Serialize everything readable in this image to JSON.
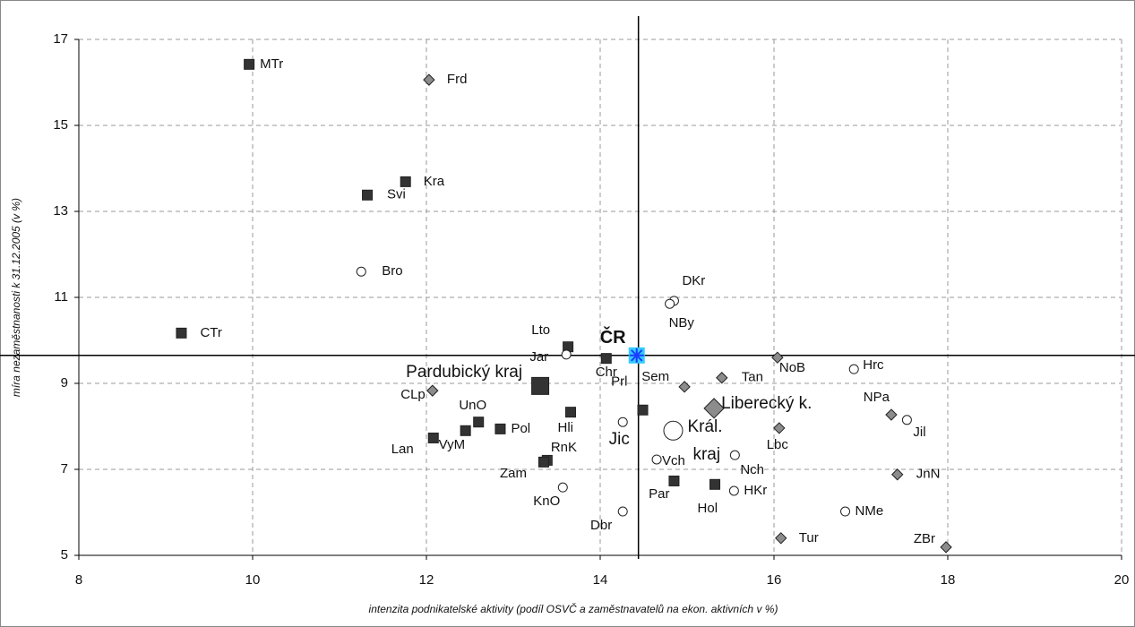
{
  "chart_data": {
    "type": "scatter",
    "xlabel": "intenzita podnikatelské aktivity (podíl OSVČ a zaměstnavatelů na ekon. aktivních v %)",
    "ylabel": "míra nezaměstnanosti  k 31.12.2005 (v %)",
    "xlim": [
      8,
      20
    ],
    "xticks": [
      8,
      10,
      12,
      14,
      16,
      18,
      20
    ],
    "ylim": [
      5,
      17
    ],
    "yticks": [
      5,
      7,
      9,
      11,
      13,
      15,
      17
    ],
    "grid": true,
    "reference_lines": {
      "x": 14.44,
      "y": 9.65
    },
    "series": [
      {
        "marker": "square",
        "color": "#333333",
        "labels": [
          "MTr",
          "Kra",
          "Svi",
          "CTr",
          "Lto",
          "Chr",
          "Hli",
          "UnO",
          "Pol",
          "VyM",
          "Lan",
          "RnK",
          "Zam",
          "Prl",
          "Par",
          "Hol"
        ],
        "x": [
          9.96,
          11.76,
          11.32,
          9.18,
          13.63,
          14.07,
          13.66,
          12.6,
          12.85,
          12.45,
          12.08,
          13.39,
          13.35,
          14.49,
          14.85,
          15.32
        ],
        "y": [
          16.42,
          13.69,
          13.38,
          10.17,
          9.85,
          9.58,
          8.33,
          8.1,
          7.94,
          7.9,
          7.73,
          7.21,
          7.17,
          8.38,
          6.73,
          6.65
        ]
      },
      {
        "marker": "diamond",
        "color": "#8c8c8c",
        "labels": [
          "Frd",
          "CLp",
          "Sem",
          "Tan",
          "NoB",
          "Lbc",
          "NPa",
          "JnN",
          "ZBr",
          "Tur"
        ],
        "x": [
          12.03,
          12.07,
          14.97,
          15.4,
          16.04,
          16.06,
          17.35,
          17.42,
          17.98,
          16.08
        ],
        "y": [
          16.06,
          8.83,
          8.92,
          9.13,
          9.6,
          7.96,
          8.27,
          6.88,
          5.19,
          5.4
        ]
      },
      {
        "marker": "circle",
        "color": "#ffffff",
        "labels": [
          "Bro",
          "Jar",
          "DKr",
          "NBy",
          "Jic",
          "Vch",
          "Nch",
          "HKr",
          "KnO",
          "Dbr",
          "NMe",
          "Hrc",
          "Jil"
        ],
        "x": [
          11.25,
          13.61,
          14.85,
          14.8,
          14.26,
          14.65,
          15.55,
          15.54,
          13.57,
          14.26,
          16.82,
          16.92,
          17.53
        ],
        "y": [
          11.6,
          9.67,
          10.92,
          10.85,
          8.1,
          7.23,
          7.33,
          6.5,
          6.58,
          6.02,
          6.02,
          9.33,
          8.15
        ]
      }
    ],
    "regions": [
      {
        "marker": "square",
        "color": "#333333",
        "label": [
          "Pardubický kraj"
        ],
        "x": 13.31,
        "y": 8.94
      },
      {
        "marker": "diamond",
        "color": "#8c8c8c",
        "label": [
          "Liberecký k."
        ],
        "x": 15.31,
        "y": 8.42
      },
      {
        "marker": "circle",
        "color": "#ffffff",
        "label": [
          "Král.",
          "kraj"
        ],
        "x": 14.84,
        "y": 7.9
      }
    ],
    "national": {
      "label": "ČR",
      "x": 14.42,
      "y": 9.65,
      "color": "#33ccff"
    }
  }
}
